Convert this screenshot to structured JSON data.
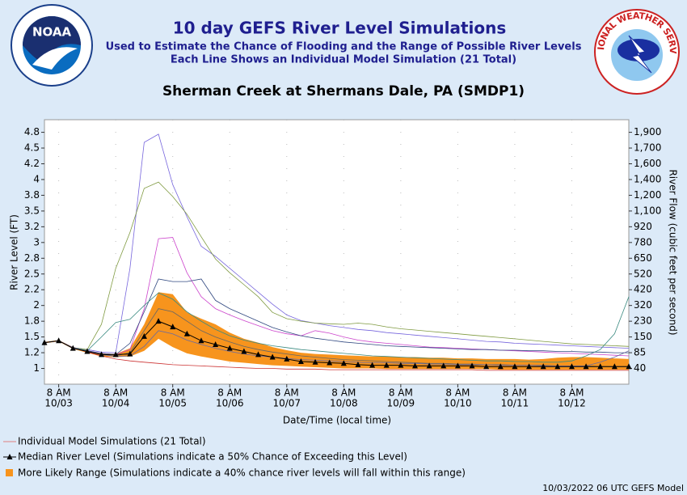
{
  "chart_data": {
    "type": "line",
    "title": "10 day GEFS River Level Simulations",
    "subtitle": [
      "Used to Estimate the Chance of Flooding and the Range of Possible River Levels",
      "Each Line Shows an Individual Model Simulation (21 Total)"
    ],
    "location": "Sherman Creek at Shermans Dale, PA (SMDP1)",
    "logos": {
      "left": "NOAA",
      "right": "NATIONAL WEATHER SERVICE"
    },
    "xlabel": "Date/Time (local time)",
    "ylabel": "River Level (FT)",
    "y2label": "River Flow (cubic feet per second)",
    "footer": "10/03/2022 06 UTC GEFS Model",
    "x": [
      0,
      6,
      12,
      18,
      24,
      30,
      36,
      42,
      48,
      54,
      60,
      66,
      72,
      78,
      84,
      90,
      96,
      102,
      108,
      114,
      120,
      126,
      132,
      138,
      144,
      150,
      156,
      162,
      168,
      174,
      180,
      186,
      192,
      198,
      204,
      210,
      216,
      222,
      228,
      234,
      240,
      246
    ],
    "xlim": [
      0,
      246
    ],
    "xticks": [
      {
        "value": 6,
        "label": "8 AM",
        "sublabel": "10/03"
      },
      {
        "value": 30,
        "label": "8 AM",
        "sublabel": "10/04"
      },
      {
        "value": 54,
        "label": "8 AM",
        "sublabel": "10/05"
      },
      {
        "value": 78,
        "label": "8 AM",
        "sublabel": "10/06"
      },
      {
        "value": 102,
        "label": "8 AM",
        "sublabel": "10/07"
      },
      {
        "value": 126,
        "label": "8 AM",
        "sublabel": "10/08"
      },
      {
        "value": 150,
        "label": "8 AM",
        "sublabel": "10/09"
      },
      {
        "value": 174,
        "label": "8 AM",
        "sublabel": "10/10"
      },
      {
        "value": 198,
        "label": "8 AM",
        "sublabel": "10/11"
      },
      {
        "value": 222,
        "label": "8 AM",
        "sublabel": "10/12"
      }
    ],
    "ylim": [
      0.75,
      4.95
    ],
    "yticks": [
      1.0,
      {
        "value": 1.25,
        "label": "1.2"
      },
      1.5,
      {
        "value": 1.75,
        "label": "1.8"
      },
      2.0,
      {
        "value": 2.25,
        "label": "2.2"
      },
      2.5,
      {
        "value": 2.75,
        "label": "2.8"
      },
      3.0,
      {
        "value": 3.25,
        "label": "3.2"
      },
      3.5,
      {
        "value": 3.75,
        "label": "3.8"
      },
      4.0,
      {
        "value": 4.25,
        "label": "4.2"
      },
      4.5,
      {
        "value": 4.75,
        "label": "4.8"
      }
    ],
    "y2ticks": [
      40,
      85,
      150,
      230,
      320,
      420,
      520,
      650,
      780,
      920,
      {
        "value": 1100,
        "label": "1,100"
      },
      {
        "value": 1200,
        "label": "1,200"
      },
      {
        "value": 1400,
        "label": "1,400"
      },
      {
        "value": 1600,
        "label": "1,600"
      },
      {
        "value": 1700,
        "label": "1,700"
      },
      {
        "value": 1900,
        "label": "1,900"
      }
    ],
    "simulations_label": "Individual Model Simulations (21 Total)",
    "simulations_legend_color": "#e08080",
    "simulations": [
      {
        "color": "#7766dd",
        "values": [
          1.41,
          1.44,
          1.33,
          1.3,
          1.26,
          1.25,
          2.59,
          4.59,
          4.72,
          3.92,
          3.41,
          2.94,
          2.78,
          2.59,
          2.4,
          2.21,
          2.02,
          1.85,
          1.76,
          1.72,
          1.68,
          1.65,
          1.62,
          1.6,
          1.57,
          1.55,
          1.53,
          1.51,
          1.49,
          1.47,
          1.45,
          1.43,
          1.42,
          1.4,
          1.39,
          1.38,
          1.37,
          1.36,
          1.35,
          1.34,
          1.33,
          1.32
        ]
      },
      {
        "color": "#7f9a40",
        "values": [
          1.41,
          1.44,
          1.33,
          1.3,
          1.7,
          2.59,
          3.16,
          3.86,
          3.96,
          3.73,
          3.45,
          3.09,
          2.74,
          2.52,
          2.33,
          2.14,
          1.89,
          1.79,
          1.75,
          1.72,
          1.71,
          1.7,
          1.72,
          1.7,
          1.66,
          1.63,
          1.61,
          1.59,
          1.57,
          1.55,
          1.53,
          1.51,
          1.49,
          1.47,
          1.45,
          1.43,
          1.41,
          1.39,
          1.38,
          1.37,
          1.36,
          1.35
        ]
      },
      {
        "color": "#cc44cc",
        "values": [
          1.41,
          1.44,
          1.33,
          1.28,
          1.24,
          1.22,
          1.3,
          1.95,
          3.06,
          3.08,
          2.52,
          2.14,
          1.95,
          1.85,
          1.76,
          1.68,
          1.6,
          1.55,
          1.52,
          1.6,
          1.56,
          1.5,
          1.45,
          1.42,
          1.4,
          1.38,
          1.36,
          1.34,
          1.33,
          1.32,
          1.31,
          1.3,
          1.29,
          1.28,
          1.27,
          1.26,
          1.25,
          1.24,
          1.23,
          1.22,
          1.21,
          1.2
        ]
      },
      {
        "color": "#304880",
        "values": [
          1.41,
          1.44,
          1.33,
          1.28,
          1.24,
          1.22,
          1.4,
          1.9,
          2.42,
          2.38,
          2.38,
          2.42,
          2.08,
          1.95,
          1.85,
          1.75,
          1.65,
          1.58,
          1.52,
          1.48,
          1.45,
          1.42,
          1.4,
          1.38,
          1.36,
          1.35,
          1.34,
          1.33,
          1.32,
          1.31,
          1.3,
          1.3,
          1.29,
          1.29,
          1.28,
          1.28,
          1.27,
          1.27,
          1.26,
          1.26,
          1.25,
          1.25
        ]
      },
      {
        "color": "#3a8a80",
        "values": [
          1.41,
          1.44,
          1.33,
          1.28,
          1.5,
          1.73,
          1.78,
          2.0,
          2.2,
          2.1,
          1.9,
          1.75,
          1.62,
          1.52,
          1.45,
          1.4,
          1.36,
          1.33,
          1.3,
          1.28,
          1.26,
          1.24,
          1.22,
          1.2,
          1.19,
          1.18,
          1.17,
          1.16,
          1.15,
          1.14,
          1.13,
          1.12,
          1.12,
          1.11,
          1.11,
          1.1,
          1.1,
          1.12,
          1.2,
          1.3,
          1.55,
          2.14
        ]
      },
      {
        "color": "#666666",
        "values": [
          1.41,
          1.44,
          1.33,
          1.27,
          1.22,
          1.2,
          1.25,
          1.6,
          1.95,
          1.9,
          1.75,
          1.6,
          1.5,
          1.42,
          1.35,
          1.3,
          1.26,
          1.23,
          1.2,
          1.18,
          1.16,
          1.14,
          1.13,
          1.12,
          1.11,
          1.1,
          1.09,
          1.08,
          1.08,
          1.07,
          1.07,
          1.06,
          1.06,
          1.05,
          1.05,
          1.05,
          1.04,
          1.04,
          1.04,
          1.03,
          1.03,
          1.03
        ]
      },
      {
        "color": "#cc3333",
        "values": [
          1.41,
          1.44,
          1.33,
          1.26,
          1.2,
          1.15,
          1.12,
          1.1,
          1.08,
          1.06,
          1.05,
          1.04,
          1.03,
          1.02,
          1.01,
          1.0,
          1.0,
          0.99,
          0.99,
          0.99,
          0.98,
          0.98,
          0.98,
          0.98,
          0.98,
          0.98,
          0.98,
          0.98,
          0.98,
          0.98,
          0.98,
          0.97,
          0.97,
          0.97,
          0.97,
          0.97,
          0.97,
          0.97,
          0.97,
          0.97,
          0.97,
          0.97
        ]
      },
      {
        "color": "#6a6aa0",
        "values": [
          1.41,
          1.44,
          1.33,
          1.27,
          1.22,
          1.19,
          1.2,
          1.35,
          1.6,
          1.55,
          1.45,
          1.38,
          1.32,
          1.27,
          1.23,
          1.2,
          1.18,
          1.16,
          1.14,
          1.13,
          1.12,
          1.11,
          1.1,
          1.09,
          1.09,
          1.08,
          1.08,
          1.07,
          1.07,
          1.06,
          1.06,
          1.06,
          1.05,
          1.05,
          1.05,
          1.04,
          1.04,
          1.04,
          1.04,
          1.1,
          1.18,
          1.28
        ]
      }
    ],
    "range": {
      "name": "More Likely Range (Simulations indicate a 40% chance river levels will fall within this range)",
      "color": "#f7941d",
      "lower": [
        1.4,
        1.43,
        1.31,
        1.25,
        1.19,
        1.18,
        1.19,
        1.28,
        1.47,
        1.34,
        1.24,
        1.19,
        1.15,
        1.11,
        1.09,
        1.07,
        1.05,
        1.04,
        1.03,
        1.02,
        1.01,
        1.0,
        1.0,
        1.0,
        0.99,
        0.99,
        0.99,
        0.99,
        0.99,
        0.99,
        0.99,
        0.99,
        0.98,
        0.98,
        0.98,
        0.98,
        0.98,
        0.98,
        0.98,
        0.98,
        0.98,
        0.98
      ],
      "upper": [
        1.42,
        1.45,
        1.34,
        1.29,
        1.24,
        1.23,
        1.32,
        1.7,
        2.21,
        2.18,
        1.89,
        1.79,
        1.7,
        1.57,
        1.47,
        1.41,
        1.34,
        1.29,
        1.25,
        1.23,
        1.22,
        1.21,
        1.2,
        1.19,
        1.19,
        1.18,
        1.18,
        1.17,
        1.17,
        1.16,
        1.16,
        1.15,
        1.15,
        1.15,
        1.14,
        1.15,
        1.17,
        1.18,
        1.18,
        1.17,
        1.16,
        1.15
      ]
    },
    "median": {
      "name": "Median River Level (Simulations indicate a 50% Chance of Exceeding this Level)",
      "color": "#000000",
      "values": [
        1.41,
        1.44,
        1.32,
        1.27,
        1.22,
        1.22,
        1.23,
        1.51,
        1.75,
        1.66,
        1.55,
        1.44,
        1.38,
        1.32,
        1.27,
        1.22,
        1.18,
        1.15,
        1.11,
        1.1,
        1.09,
        1.08,
        1.06,
        1.05,
        1.05,
        1.05,
        1.04,
        1.04,
        1.04,
        1.04,
        1.04,
        1.03,
        1.03,
        1.03,
        1.03,
        1.03,
        1.03,
        1.03,
        1.03,
        1.03,
        1.03,
        1.03
      ]
    }
  }
}
